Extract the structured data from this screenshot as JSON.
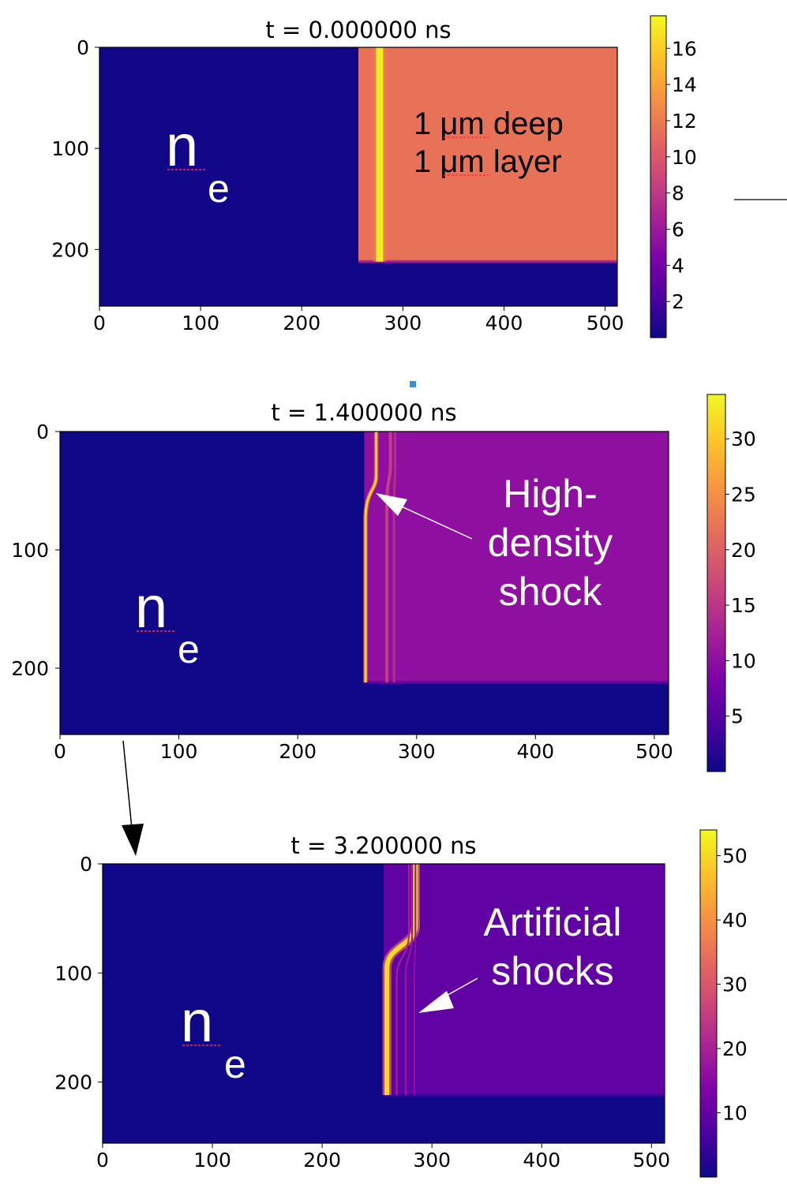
{
  "chart_data": [
    {
      "type": "heatmap",
      "title": "t = 0.000000 ns",
      "quantity_label": "n",
      "quantity_subscript": "e",
      "x_ticks": [
        0,
        100,
        200,
        300,
        400,
        500
      ],
      "y_ticks": [
        0,
        100,
        200
      ],
      "xlim": [
        0,
        512
      ],
      "ylim": [
        256,
        0
      ],
      "colorbar": {
        "ticks": [
          2,
          4,
          6,
          8,
          10,
          12,
          14,
          16
        ],
        "range": [
          0,
          17.8
        ]
      },
      "layer": {
        "x_start": 256,
        "y_end": 212,
        "value": 11.5
      },
      "background_value": 0.2,
      "shocks": [
        {
          "x_top": 277,
          "x_bottom": 277,
          "bend_y": 0,
          "width": 9,
          "value": 17.3
        }
      ],
      "annotations": [
        {
          "lines": [
            "1 μm deep",
            "1 μm layer"
          ],
          "color": "#000000"
        }
      ]
    },
    {
      "type": "heatmap",
      "title": "t = 1.400000 ns",
      "quantity_label": "n",
      "quantity_subscript": "e",
      "x_ticks": [
        0,
        100,
        200,
        300,
        400,
        500
      ],
      "y_ticks": [
        0,
        100,
        200
      ],
      "xlim": [
        0,
        512
      ],
      "ylim": [
        256,
        0
      ],
      "colorbar": {
        "ticks": [
          5,
          10,
          15,
          20,
          25,
          30
        ],
        "range": [
          0,
          34
        ]
      },
      "layer": {
        "x_start": 256,
        "y_end": 212,
        "value": 10.2
      },
      "background_value": 0.3,
      "shocks": [
        {
          "x_top": 266,
          "x_bottom": 257,
          "bend_y": 50,
          "width": 3,
          "value": 31
        },
        {
          "x_top": 278,
          "x_bottom": 275,
          "bend_y": 40,
          "width": 4,
          "value": 16
        },
        {
          "x_top": 282,
          "x_bottom": 281,
          "bend_y": 40,
          "width": 3,
          "value": 14
        }
      ],
      "annotations": [
        {
          "lines": [
            "High-",
            "density",
            "shock"
          ],
          "color": "#ffffff"
        }
      ]
    },
    {
      "type": "heatmap",
      "title": "t = 3.200000 ns",
      "quantity_label": "n",
      "quantity_subscript": "e",
      "x_ticks": [
        0,
        100,
        200,
        300,
        400,
        500
      ],
      "y_ticks": [
        0,
        100,
        200
      ],
      "xlim": [
        0,
        512
      ],
      "ylim": [
        256,
        0
      ],
      "colorbar": {
        "ticks": [
          10,
          20,
          30,
          40,
          50
        ],
        "range": [
          0,
          54
        ]
      },
      "layer": {
        "x_start": 256,
        "y_end": 212,
        "value": 9.5
      },
      "background_value": 0.3,
      "shocks": [
        {
          "x_top": 285,
          "x_bottom": 259,
          "bend_y": 75,
          "width": 6,
          "value": 50
        },
        {
          "x_top": 279,
          "x_bottom": 268,
          "bend_y": 85,
          "width": 2,
          "value": 20
        },
        {
          "x_top": 282,
          "x_bottom": 276,
          "bend_y": 85,
          "width": 2,
          "value": 18
        },
        {
          "x_top": 285,
          "x_bottom": 284,
          "bend_y": 85,
          "width": 2,
          "value": 16
        }
      ],
      "annotations": [
        {
          "lines": [
            "Artificial",
            "shocks"
          ],
          "color": "#ffffff"
        }
      ]
    }
  ]
}
